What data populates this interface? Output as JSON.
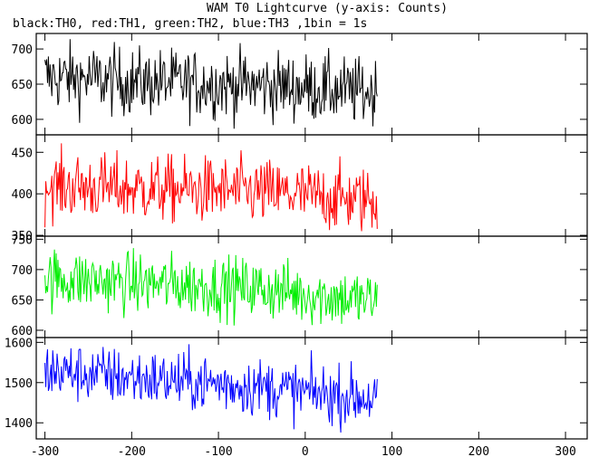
{
  "chart_data": {
    "type": "line",
    "title": "WAM T0 Lightcurve (y-axis: Counts)",
    "subtitle": "black:TH0, red:TH1, green:TH2, blue:TH3 ,1bin = 1s",
    "xlabel": "",
    "ylabel": "",
    "grid": false,
    "xlim": [
      -310,
      325
    ],
    "xticks": [
      -300,
      -200,
      -100,
      0,
      100,
      200,
      300
    ],
    "x_start": -300,
    "x_end": 83,
    "bin": 1,
    "panels": [
      {
        "name": "TH0",
        "color": "#000000",
        "ylim": [
          578,
          722
        ],
        "yticks": [
          600,
          650,
          700
        ],
        "sparse_shape": [
          [
            -300,
            660
          ],
          [
            -250,
            658
          ],
          [
            -200,
            653
          ],
          [
            -150,
            652
          ],
          [
            -100,
            650
          ],
          [
            -50,
            648
          ],
          [
            0,
            645
          ],
          [
            50,
            640
          ],
          [
            83,
            638
          ]
        ],
        "noise_sd": 24,
        "min": 580,
        "max": 720
      },
      {
        "name": "TH1",
        "color": "#ff0000",
        "ylim": [
          349,
          471
        ],
        "yticks": [
          350,
          400,
          450
        ],
        "sparse_shape": [
          [
            -300,
            410
          ],
          [
            -250,
            408
          ],
          [
            -200,
            406
          ],
          [
            -150,
            405
          ],
          [
            -100,
            404
          ],
          [
            -50,
            402
          ],
          [
            0,
            398
          ],
          [
            50,
            394
          ],
          [
            83,
            392
          ]
        ],
        "noise_sd": 20,
        "min": 350,
        "max": 470
      },
      {
        "name": "TH2",
        "color": "#00ee00",
        "ylim": [
          588,
          755
        ],
        "yticks": [
          600,
          650,
          700,
          750
        ],
        "sparse_shape": [
          [
            -300,
            685
          ],
          [
            -250,
            682
          ],
          [
            -200,
            678
          ],
          [
            -150,
            675
          ],
          [
            -100,
            672
          ],
          [
            -50,
            668
          ],
          [
            0,
            660
          ],
          [
            50,
            652
          ],
          [
            83,
            648
          ]
        ],
        "noise_sd": 25,
        "min": 592,
        "max": 752
      },
      {
        "name": "TH3",
        "color": "#0000ff",
        "ylim": [
          1360,
          1612
        ],
        "yticks": [
          1400,
          1500,
          1600
        ],
        "sparse_shape": [
          [
            -300,
            1530
          ],
          [
            -250,
            1522
          ],
          [
            -200,
            1512
          ],
          [
            -150,
            1504
          ],
          [
            -100,
            1497
          ],
          [
            -50,
            1488
          ],
          [
            0,
            1476
          ],
          [
            50,
            1466
          ],
          [
            83,
            1460
          ]
        ],
        "noise_sd": 36,
        "min": 1368,
        "max": 1610
      }
    ]
  }
}
